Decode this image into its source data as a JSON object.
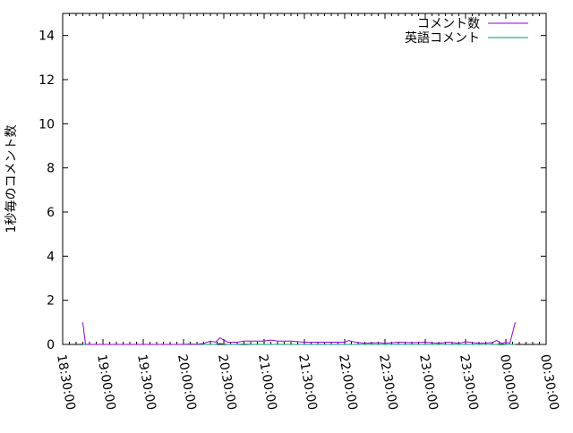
{
  "chart_data": {
    "type": "line",
    "title": "",
    "xlabel": "",
    "ylabel": "1秒毎のコメント数",
    "ylim": [
      0,
      15
    ],
    "yticks": [
      "0",
      "2",
      "4",
      "6",
      "8",
      "10",
      "12",
      "14"
    ],
    "xlim": [
      "18:30:00",
      "00:30:00"
    ],
    "xticks": [
      "18:30:00",
      "19:00:00",
      "19:30:00",
      "20:00:00",
      "20:30:00",
      "21:00:00",
      "21:30:00",
      "22:00:00",
      "22:30:00",
      "23:00:00",
      "23:30:00",
      "00:00:00",
      "00:30:00"
    ],
    "grid": false,
    "legend": "top-right",
    "x": [
      "18:45",
      "18:47",
      "20:00",
      "20:05",
      "20:10",
      "20:15",
      "20:20",
      "20:24",
      "20:27",
      "20:30",
      "20:33",
      "20:40",
      "20:45",
      "20:50",
      "21:00",
      "21:05",
      "21:10",
      "21:20",
      "21:30",
      "21:40",
      "21:50",
      "22:00",
      "22:03",
      "22:08",
      "22:15",
      "22:25",
      "22:30",
      "22:40",
      "22:50",
      "23:00",
      "23:10",
      "23:17",
      "23:25",
      "23:30",
      "23:40",
      "23:50",
      "23:53",
      "23:57",
      "00:00",
      "00:03",
      "00:07"
    ],
    "series": [
      {
        "name": "コメント数",
        "color": "#9400d3",
        "values": [
          1,
          0,
          0,
          0.02,
          0,
          0.05,
          0.15,
          0.1,
          0.3,
          0.2,
          0.1,
          0.1,
          0.15,
          0.15,
          0.15,
          0.2,
          0.15,
          0.15,
          0.1,
          0.1,
          0.1,
          0.1,
          0.18,
          0.1,
          0.05,
          0.08,
          0.05,
          0.1,
          0.08,
          0.1,
          0.05,
          0.1,
          0.05,
          0.12,
          0.05,
          0.08,
          0.18,
          0.05,
          0.1,
          0.05,
          1
        ]
      },
      {
        "name": "英語コメント",
        "color": "#009e73",
        "values": [
          0,
          0,
          0,
          0,
          0,
          0,
          0,
          0,
          0.05,
          0.02,
          0,
          0,
          0.02,
          0,
          0,
          0,
          0,
          0,
          0,
          0,
          0,
          0,
          0,
          0,
          0,
          0,
          0,
          0,
          0,
          0,
          0,
          0,
          0,
          0,
          0,
          0,
          0,
          0.03,
          0,
          0,
          0
        ]
      }
    ]
  }
}
